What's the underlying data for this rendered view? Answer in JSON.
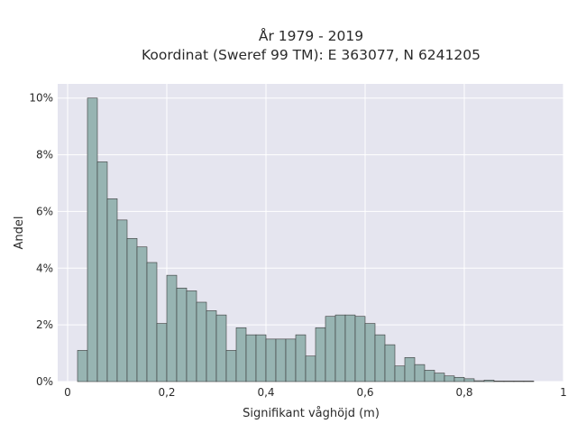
{
  "chart_data": {
    "type": "bar",
    "title_line1": "År 1979 - 2019",
    "title_line2": "Koordinat (Sweref 99 TM): E 363077, N 6241205",
    "xlabel": "Signifikant våghöjd (m)",
    "ylabel": "Andel",
    "xlim": [
      -0.02,
      1.0
    ],
    "ylim": [
      0,
      10.5
    ],
    "x_ticks": [
      {
        "value": 0,
        "label": "0"
      },
      {
        "value": 0.2,
        "label": "0,2"
      },
      {
        "value": 0.4,
        "label": "0,4"
      },
      {
        "value": 0.6,
        "label": "0,6"
      },
      {
        "value": 0.8,
        "label": "0,8"
      },
      {
        "value": 1.0,
        "label": "1"
      }
    ],
    "y_ticks": [
      {
        "value": 0,
        "label": "0%"
      },
      {
        "value": 2,
        "label": "2%"
      },
      {
        "value": 4,
        "label": "4%"
      },
      {
        "value": 6,
        "label": "6%"
      },
      {
        "value": 8,
        "label": "8%"
      },
      {
        "value": 10,
        "label": "10%"
      }
    ],
    "bin_width": 0.02,
    "bin_starts": [
      0.02,
      0.04,
      0.06,
      0.08,
      0.1,
      0.12,
      0.14,
      0.16,
      0.18,
      0.2,
      0.22,
      0.24,
      0.26,
      0.28,
      0.3,
      0.32,
      0.34,
      0.36,
      0.38,
      0.4,
      0.42,
      0.44,
      0.46,
      0.48,
      0.5,
      0.52,
      0.54,
      0.56,
      0.58,
      0.6,
      0.62,
      0.64,
      0.66,
      0.68,
      0.7,
      0.72,
      0.74,
      0.76,
      0.78,
      0.8,
      0.82,
      0.84,
      0.86,
      0.88,
      0.9,
      0.92
    ],
    "values": [
      1.1,
      10.0,
      7.75,
      6.45,
      5.7,
      5.05,
      4.75,
      4.2,
      2.05,
      3.75,
      3.3,
      3.2,
      2.8,
      2.5,
      2.35,
      1.1,
      1.9,
      1.65,
      1.65,
      1.5,
      1.5,
      1.5,
      1.65,
      0.9,
      1.9,
      2.3,
      2.35,
      2.35,
      2.3,
      2.05,
      1.65,
      1.3,
      0.55,
      0.85,
      0.6,
      0.4,
      0.3,
      0.2,
      0.15,
      0.1,
      0.03,
      0.05,
      0.02,
      0.02,
      0.02,
      0.02
    ],
    "grid": true,
    "colors": {
      "plot_background": "#e5e5ef",
      "grid": "#ffffff",
      "bar_fill": "#97b4b2",
      "bar_stroke": "#3a3a3a"
    }
  }
}
